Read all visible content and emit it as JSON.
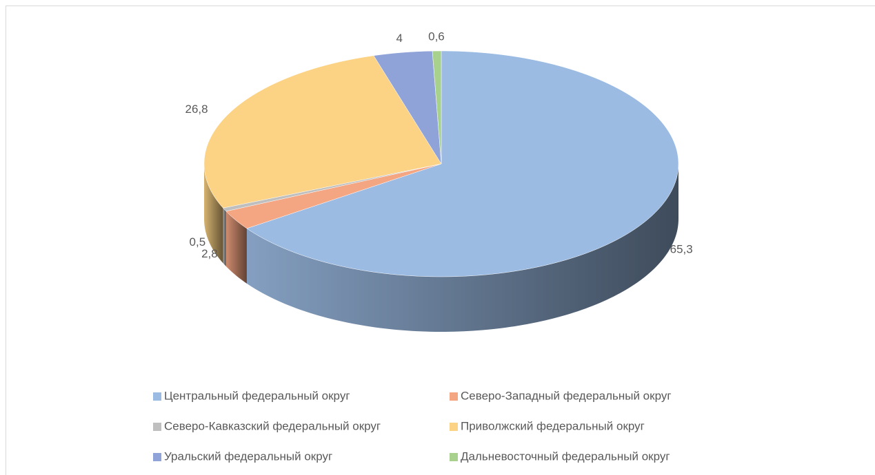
{
  "chart_data": {
    "type": "pie3d",
    "categories": [
      "Центральный федеральный округ",
      "Северо-Западный федеральный округ",
      "Северо-Кавказский федеральный округ",
      "Приволжский федеральный округ",
      "Уральский федеральный округ",
      "Дальневосточный федеральный округ"
    ],
    "values": [
      65.3,
      2.8,
      0.5,
      26.8,
      4,
      0.6
    ],
    "value_labels": [
      "65,3",
      "2,8",
      "0,5",
      "26,8",
      "4",
      "0,6"
    ],
    "colors": [
      "#9bbbe3",
      "#f4a582",
      "#bfbfbf",
      "#fcd384",
      "#8fa3d9",
      "#a9d18e"
    ],
    "legend": "bottom"
  }
}
